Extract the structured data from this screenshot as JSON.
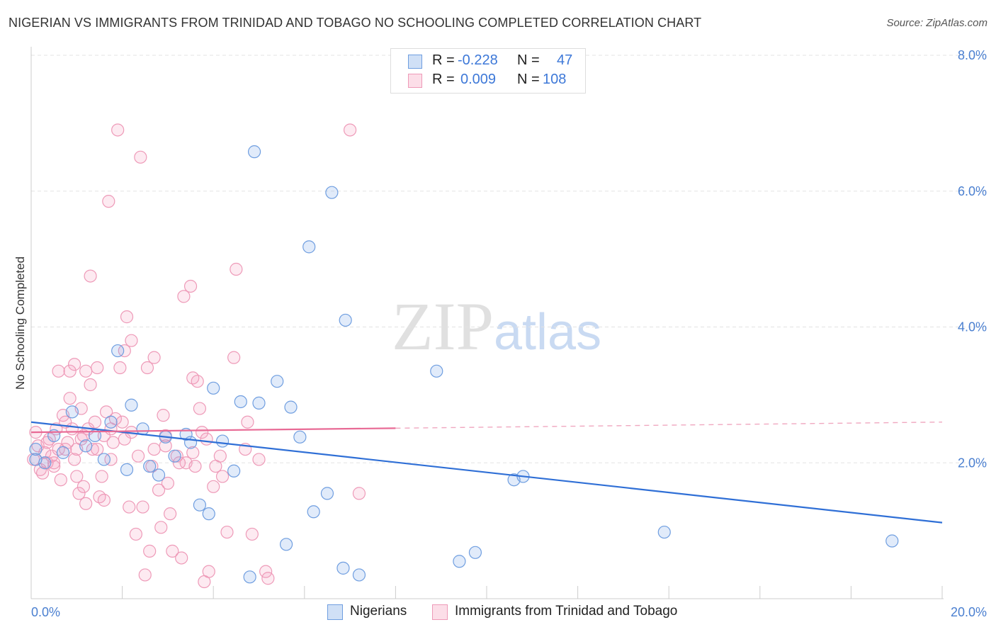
{
  "title": "NIGERIAN VS IMMIGRANTS FROM TRINIDAD AND TOBAGO NO SCHOOLING COMPLETED CORRELATION CHART",
  "source": "Source: ZipAtlas.com",
  "watermark": {
    "zip": "ZIP",
    "atlas": "atlas"
  },
  "legend_top": [
    {
      "r_label": "R =",
      "r_value": "-0.228",
      "n_label": "N =",
      "n_value": "47",
      "color": "#7aa7e6"
    },
    {
      "r_label": "R =",
      "r_value": "0.009",
      "n_label": "N =",
      "n_value": "108",
      "color": "#f2a3bf"
    }
  ],
  "legend_bottom": [
    {
      "label": "Nigerians",
      "color": "#7aa7e6"
    },
    {
      "label": "Immigrants from Trinidad and Tobago",
      "color": "#f2a3bf"
    }
  ],
  "chart_data": {
    "type": "scatter",
    "title": "NIGERIAN VS IMMIGRANTS FROM TRINIDAD AND TOBAGO NO SCHOOLING COMPLETED CORRELATION CHART",
    "xlabel": "",
    "ylabel": "No Schooling Completed",
    "xlim": [
      0,
      20
    ],
    "ylim": [
      0,
      8
    ],
    "x_tick_labels": [
      "0.0%",
      "20.0%"
    ],
    "y_ticks": [
      2,
      4,
      6,
      8
    ],
    "y_tick_labels": [
      "2.0%",
      "4.0%",
      "6.0%",
      "8.0%"
    ],
    "grid": true,
    "legend_position": "top-center",
    "series": [
      {
        "name": "Nigerians",
        "color": "#6f9ee0",
        "trend": {
          "x": [
            0,
            20
          ],
          "y": [
            2.6,
            1.12
          ],
          "solid_until": 20
        },
        "points": [
          [
            0.1,
            2.2
          ],
          [
            0.3,
            2.0
          ],
          [
            0.5,
            2.4
          ],
          [
            0.7,
            2.15
          ],
          [
            0.9,
            2.75
          ],
          [
            1.2,
            2.25
          ],
          [
            1.4,
            2.4
          ],
          [
            1.6,
            2.05
          ],
          [
            1.75,
            2.6
          ],
          [
            1.9,
            3.65
          ],
          [
            2.1,
            1.9
          ],
          [
            2.2,
            2.85
          ],
          [
            2.45,
            2.5
          ],
          [
            2.6,
            1.95
          ],
          [
            2.8,
            1.82
          ],
          [
            2.95,
            2.38
          ],
          [
            3.15,
            2.1
          ],
          [
            3.4,
            2.42
          ],
          [
            3.5,
            2.3
          ],
          [
            3.7,
            1.38
          ],
          [
            3.9,
            1.25
          ],
          [
            4.0,
            3.1
          ],
          [
            4.2,
            2.32
          ],
          [
            4.45,
            1.88
          ],
          [
            4.6,
            2.9
          ],
          [
            4.8,
            0.32
          ],
          [
            4.9,
            6.58
          ],
          [
            5.0,
            2.88
          ],
          [
            5.4,
            3.2
          ],
          [
            5.6,
            0.8
          ],
          [
            5.7,
            2.82
          ],
          [
            5.9,
            2.38
          ],
          [
            6.1,
            5.18
          ],
          [
            6.2,
            1.28
          ],
          [
            6.5,
            1.55
          ],
          [
            6.6,
            5.98
          ],
          [
            6.85,
            0.45
          ],
          [
            6.9,
            4.1
          ],
          [
            7.2,
            0.35
          ],
          [
            8.9,
            3.35
          ],
          [
            9.4,
            0.55
          ],
          [
            9.75,
            0.68
          ],
          [
            10.6,
            1.75
          ],
          [
            10.8,
            1.8
          ],
          [
            13.9,
            0.98
          ],
          [
            18.9,
            0.85
          ],
          [
            0.1,
            2.05
          ]
        ]
      },
      {
        "name": "Immigrants from Trinidad and Tobago",
        "color": "#ee9ab8",
        "trend": {
          "x": [
            0,
            20
          ],
          "y": [
            2.45,
            2.6
          ],
          "solid_until": 8
        },
        "points": [
          [
            0.05,
            2.05
          ],
          [
            0.15,
            2.25
          ],
          [
            0.2,
            1.9
          ],
          [
            0.3,
            2.15
          ],
          [
            0.35,
            2.0
          ],
          [
            0.4,
            2.35
          ],
          [
            0.45,
            2.1
          ],
          [
            0.5,
            1.95
          ],
          [
            0.55,
            2.5
          ],
          [
            0.6,
            2.2
          ],
          [
            0.6,
            3.35
          ],
          [
            0.65,
            1.75
          ],
          [
            0.7,
            2.7
          ],
          [
            0.75,
            2.6
          ],
          [
            0.8,
            2.3
          ],
          [
            0.85,
            3.35
          ],
          [
            0.85,
            2.95
          ],
          [
            0.9,
            2.5
          ],
          [
            0.95,
            3.45
          ],
          [
            1.0,
            2.2
          ],
          [
            1.0,
            1.8
          ],
          [
            1.05,
            1.55
          ],
          [
            1.1,
            2.8
          ],
          [
            1.1,
            2.35
          ],
          [
            1.15,
            1.65
          ],
          [
            1.2,
            3.35
          ],
          [
            1.2,
            1.4
          ],
          [
            1.25,
            2.5
          ],
          [
            1.3,
            4.75
          ],
          [
            1.3,
            3.15
          ],
          [
            1.35,
            2.2
          ],
          [
            1.4,
            2.6
          ],
          [
            1.45,
            3.4
          ],
          [
            1.5,
            1.5
          ],
          [
            1.55,
            1.8
          ],
          [
            1.6,
            2.4
          ],
          [
            1.6,
            1.45
          ],
          [
            1.65,
            2.75
          ],
          [
            1.7,
            5.85
          ],
          [
            1.75,
            2.5
          ],
          [
            1.8,
            2.3
          ],
          [
            1.85,
            2.65
          ],
          [
            1.9,
            6.9
          ],
          [
            1.95,
            3.4
          ],
          [
            2.0,
            2.6
          ],
          [
            2.05,
            3.65
          ],
          [
            2.1,
            4.15
          ],
          [
            2.15,
            1.35
          ],
          [
            2.2,
            2.45
          ],
          [
            2.2,
            3.8
          ],
          [
            2.3,
            0.95
          ],
          [
            2.4,
            6.5
          ],
          [
            2.45,
            1.35
          ],
          [
            2.5,
            0.35
          ],
          [
            2.55,
            3.4
          ],
          [
            2.6,
            0.7
          ],
          [
            2.7,
            3.55
          ],
          [
            2.7,
            2.2
          ],
          [
            2.8,
            1.6
          ],
          [
            2.85,
            1.05
          ],
          [
            2.9,
            2.7
          ],
          [
            2.95,
            2.4
          ],
          [
            3.0,
            1.7
          ],
          [
            3.05,
            1.25
          ],
          [
            3.1,
            0.7
          ],
          [
            3.2,
            2.1
          ],
          [
            3.3,
            0.6
          ],
          [
            3.35,
            4.45
          ],
          [
            3.4,
            2.0
          ],
          [
            3.5,
            4.6
          ],
          [
            3.55,
            3.25
          ],
          [
            3.6,
            1.95
          ],
          [
            3.65,
            3.2
          ],
          [
            3.7,
            2.8
          ],
          [
            3.75,
            2.45
          ],
          [
            3.8,
            0.25
          ],
          [
            3.9,
            0.4
          ],
          [
            4.0,
            1.65
          ],
          [
            4.05,
            1.95
          ],
          [
            4.2,
            1.8
          ],
          [
            4.3,
            0.98
          ],
          [
            4.45,
            3.55
          ],
          [
            4.5,
            4.85
          ],
          [
            4.7,
            2.2
          ],
          [
            4.75,
            2.6
          ],
          [
            4.85,
            0.95
          ],
          [
            5.0,
            2.05
          ],
          [
            5.15,
            0.4
          ],
          [
            5.2,
            0.3
          ],
          [
            7.0,
            6.9
          ],
          [
            7.2,
            1.55
          ],
          [
            0.1,
            2.45
          ],
          [
            0.25,
            1.85
          ],
          [
            0.35,
            2.3
          ],
          [
            0.5,
            2.0
          ],
          [
            0.75,
            2.2
          ],
          [
            0.95,
            2.05
          ],
          [
            1.15,
            2.4
          ],
          [
            1.45,
            2.2
          ],
          [
            1.75,
            2.05
          ],
          [
            2.05,
            2.35
          ],
          [
            2.35,
            2.1
          ],
          [
            2.65,
            1.95
          ],
          [
            2.95,
            2.25
          ],
          [
            3.25,
            2.0
          ],
          [
            3.55,
            2.15
          ],
          [
            3.85,
            2.35
          ],
          [
            4.15,
            2.1
          ]
        ]
      }
    ]
  }
}
